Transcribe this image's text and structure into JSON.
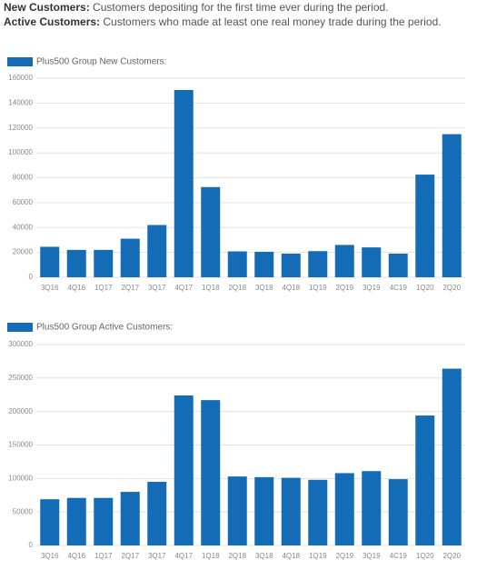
{
  "definitions": [
    {
      "term": "New Customers:",
      "text": "Customers depositing for the first time ever during the period."
    },
    {
      "term": "Active Customers:",
      "text": "Customers who made at least one real money trade during the period."
    }
  ],
  "chart_data": [
    {
      "type": "bar",
      "categories": [
        "3Q16",
        "4Q16",
        "1Q17",
        "2Q17",
        "3Q17",
        "4Q17",
        "1Q18",
        "2Q18",
        "3Q18",
        "4Q18",
        "1Q19",
        "2Q19",
        "3Q19",
        "4C19",
        "1Q20",
        "2Q20"
      ],
      "series": [
        {
          "name": "Plus500 Group New Customers:",
          "color": "#136cb5",
          "values": [
            24500,
            22000,
            22000,
            31000,
            42000,
            150500,
            72500,
            20800,
            20500,
            19000,
            21000,
            26000,
            24000,
            19000,
            82500,
            115000
          ]
        }
      ],
      "ylim": [
        0,
        160000
      ],
      "yticks": [
        0,
        20000,
        40000,
        60000,
        80000,
        100000,
        120000,
        140000,
        160000
      ],
      "grid": true
    },
    {
      "type": "bar",
      "categories": [
        "3Q16",
        "4Q16",
        "1Q17",
        "2Q17",
        "3Q17",
        "4Q17",
        "1Q18",
        "2Q18",
        "3Q18",
        "4Q18",
        "1Q19",
        "2Q19",
        "3Q19",
        "4C19",
        "1Q20",
        "2Q20"
      ],
      "series": [
        {
          "name": "Plus500 Group Active Customers:",
          "color": "#136cb5",
          "values": [
            69000,
            71000,
            71000,
            80000,
            95000,
            224000,
            217000,
            103000,
            102000,
            101000,
            98000,
            108000,
            111000,
            99000,
            194000,
            264000
          ]
        }
      ],
      "ylim": [
        0,
        300000
      ],
      "yticks": [
        0,
        50000,
        100000,
        150000,
        200000,
        250000,
        300000
      ],
      "grid": true
    }
  ]
}
